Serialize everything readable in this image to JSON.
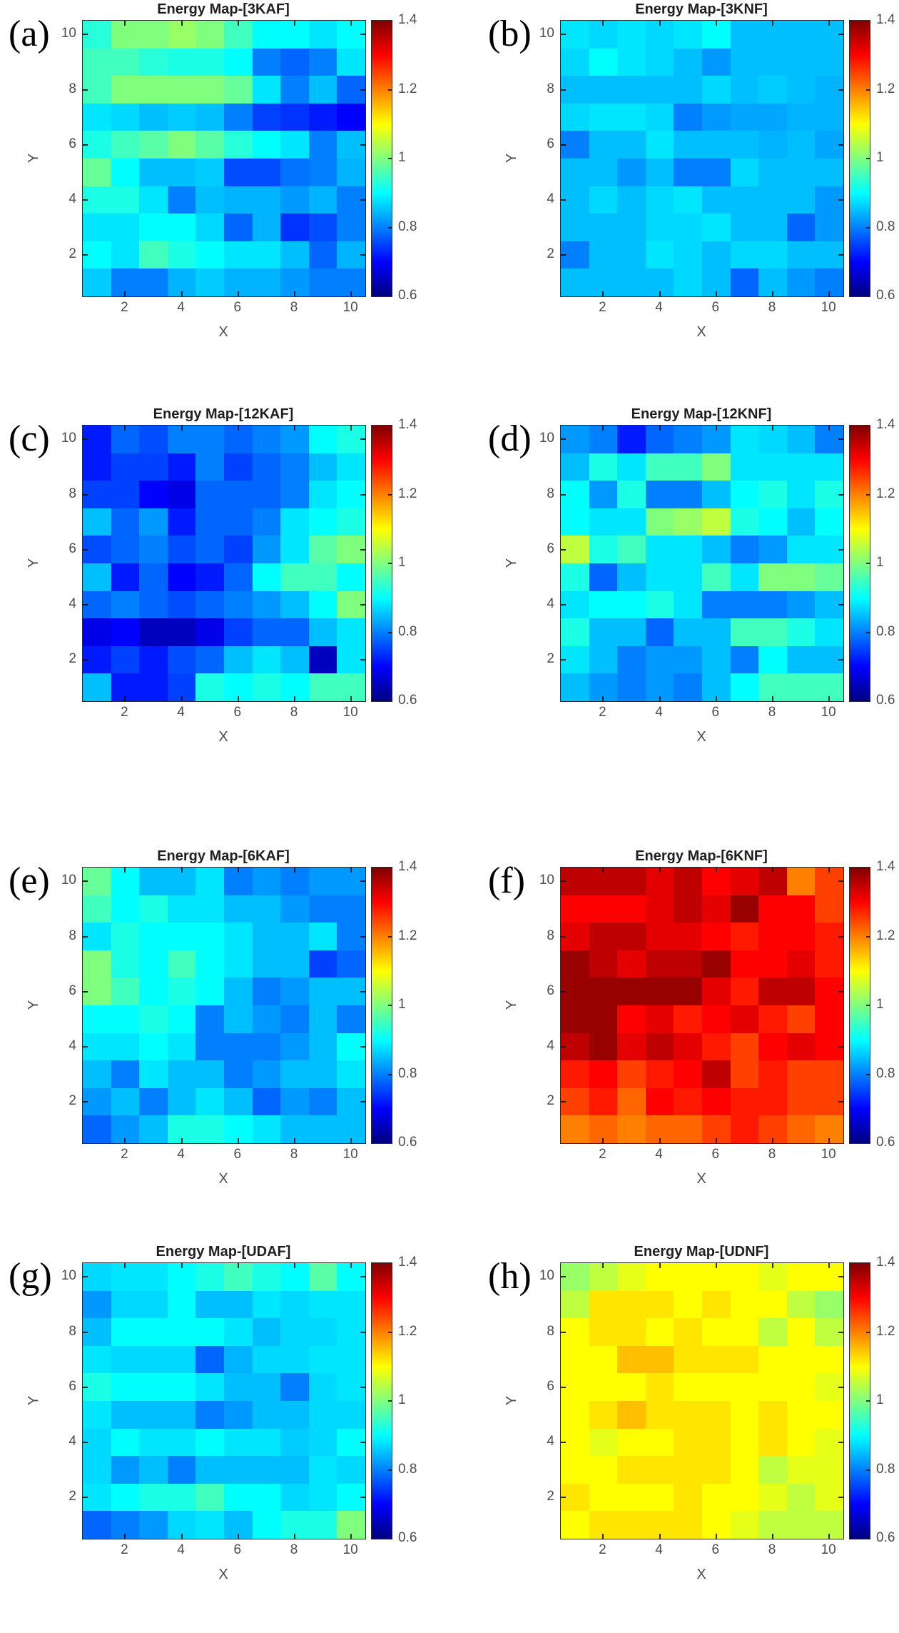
{
  "chart_data": {
    "type": "heatmap",
    "shared": {
      "xlabel": "X",
      "ylabel": "Y",
      "xticks": [
        2,
        4,
        6,
        8,
        10
      ],
      "yticks": [
        2,
        4,
        6,
        8,
        10
      ],
      "x_range": [
        1,
        10
      ],
      "y_range": [
        1,
        10
      ],
      "grid_size": [
        10,
        10
      ],
      "colormap": "jet",
      "clim": [
        0.6,
        1.4
      ],
      "colorbar_tick_labels_top_to_bottom": [
        "1.4",
        "1.2",
        "1",
        "0.8",
        "0.6"
      ],
      "legend_position": "right-colorbar",
      "grid": "off"
    },
    "panels": [
      {
        "panel_label": "(a)",
        "title": "Energy Map-[3KAF]",
        "values_rows_y10_to_y1": [
          [
            0.93,
            1.0,
            1.0,
            1.02,
            1.0,
            0.95,
            0.9,
            0.9,
            0.88,
            0.9
          ],
          [
            0.95,
            0.95,
            0.93,
            0.92,
            0.92,
            0.9,
            0.8,
            0.78,
            0.8,
            0.88
          ],
          [
            0.95,
            1.0,
            1.0,
            1.0,
            1.0,
            0.98,
            0.88,
            0.8,
            0.85,
            0.78
          ],
          [
            0.88,
            0.87,
            0.85,
            0.86,
            0.85,
            0.8,
            0.75,
            0.74,
            0.72,
            0.7
          ],
          [
            0.92,
            0.95,
            0.97,
            1.0,
            0.97,
            0.93,
            0.9,
            0.88,
            0.8,
            0.85
          ],
          [
            0.98,
            0.9,
            0.85,
            0.85,
            0.86,
            0.76,
            0.76,
            0.79,
            0.8,
            0.84
          ],
          [
            0.92,
            0.92,
            0.88,
            0.8,
            0.85,
            0.84,
            0.84,
            0.82,
            0.84,
            0.8
          ],
          [
            0.88,
            0.88,
            0.9,
            0.9,
            0.87,
            0.78,
            0.84,
            0.74,
            0.76,
            0.8
          ],
          [
            0.9,
            0.88,
            0.95,
            0.92,
            0.9,
            0.88,
            0.88,
            0.85,
            0.78,
            0.84
          ],
          [
            0.86,
            0.8,
            0.8,
            0.84,
            0.86,
            0.84,
            0.84,
            0.82,
            0.8,
            0.8
          ]
        ]
      },
      {
        "panel_label": "(b)",
        "title": "Energy Map-[3KNF]",
        "values_rows_y10_to_y1": [
          [
            0.88,
            0.87,
            0.88,
            0.87,
            0.88,
            0.9,
            0.85,
            0.85,
            0.85,
            0.85
          ],
          [
            0.87,
            0.9,
            0.88,
            0.87,
            0.85,
            0.82,
            0.85,
            0.85,
            0.85,
            0.85
          ],
          [
            0.85,
            0.85,
            0.85,
            0.85,
            0.85,
            0.87,
            0.85,
            0.86,
            0.85,
            0.84
          ],
          [
            0.87,
            0.88,
            0.88,
            0.87,
            0.8,
            0.82,
            0.83,
            0.83,
            0.84,
            0.84
          ],
          [
            0.8,
            0.85,
            0.85,
            0.88,
            0.85,
            0.85,
            0.85,
            0.84,
            0.85,
            0.83
          ],
          [
            0.85,
            0.85,
            0.82,
            0.85,
            0.8,
            0.8,
            0.87,
            0.85,
            0.85,
            0.85
          ],
          [
            0.85,
            0.87,
            0.85,
            0.87,
            0.88,
            0.85,
            0.85,
            0.85,
            0.85,
            0.82
          ],
          [
            0.85,
            0.85,
            0.85,
            0.87,
            0.87,
            0.88,
            0.85,
            0.85,
            0.78,
            0.82
          ],
          [
            0.8,
            0.85,
            0.85,
            0.88,
            0.87,
            0.85,
            0.87,
            0.87,
            0.85,
            0.85
          ],
          [
            0.85,
            0.85,
            0.85,
            0.85,
            0.87,
            0.85,
            0.78,
            0.85,
            0.82,
            0.8
          ]
        ]
      },
      {
        "panel_label": "(c)",
        "title": "Energy Map-[12KAF]",
        "values_rows_y10_to_y1": [
          [
            0.72,
            0.78,
            0.76,
            0.8,
            0.8,
            0.78,
            0.8,
            0.82,
            0.9,
            0.92
          ],
          [
            0.72,
            0.75,
            0.75,
            0.72,
            0.8,
            0.75,
            0.78,
            0.8,
            0.85,
            0.88
          ],
          [
            0.75,
            0.75,
            0.7,
            0.68,
            0.78,
            0.78,
            0.78,
            0.8,
            0.88,
            0.9
          ],
          [
            0.85,
            0.78,
            0.82,
            0.72,
            0.78,
            0.78,
            0.8,
            0.88,
            0.9,
            0.92
          ],
          [
            0.76,
            0.78,
            0.8,
            0.76,
            0.78,
            0.75,
            0.82,
            0.88,
            0.97,
            1.0
          ],
          [
            0.85,
            0.72,
            0.78,
            0.7,
            0.72,
            0.78,
            0.9,
            0.95,
            0.95,
            0.9
          ],
          [
            0.78,
            0.8,
            0.78,
            0.76,
            0.78,
            0.8,
            0.82,
            0.85,
            0.9,
            1.0
          ],
          [
            0.68,
            0.7,
            0.65,
            0.65,
            0.68,
            0.75,
            0.78,
            0.78,
            0.85,
            0.88
          ],
          [
            0.72,
            0.75,
            0.72,
            0.76,
            0.78,
            0.85,
            0.88,
            0.85,
            0.65,
            0.88
          ],
          [
            0.85,
            0.72,
            0.72,
            0.75,
            0.92,
            0.9,
            0.92,
            0.9,
            0.95,
            0.95
          ]
        ]
      },
      {
        "panel_label": "(d)",
        "title": "Energy Map-[12KNF]",
        "values_rows_y10_to_y1": [
          [
            0.82,
            0.8,
            0.72,
            0.78,
            0.8,
            0.82,
            0.88,
            0.87,
            0.85,
            0.8
          ],
          [
            0.85,
            0.92,
            0.88,
            0.95,
            0.95,
            1.0,
            0.88,
            0.88,
            0.88,
            0.88
          ],
          [
            0.9,
            0.82,
            0.92,
            0.8,
            0.8,
            0.85,
            0.9,
            0.92,
            0.88,
            0.92
          ],
          [
            0.9,
            0.88,
            0.88,
            1.0,
            1.02,
            1.05,
            0.92,
            0.9,
            0.85,
            0.9
          ],
          [
            1.05,
            0.92,
            0.95,
            0.88,
            0.88,
            0.85,
            0.8,
            0.82,
            0.88,
            0.88
          ],
          [
            0.92,
            0.78,
            0.85,
            0.88,
            0.88,
            0.95,
            0.88,
            1.0,
            1.0,
            0.98
          ],
          [
            0.88,
            0.9,
            0.9,
            0.92,
            0.88,
            0.8,
            0.8,
            0.8,
            0.82,
            0.85
          ],
          [
            0.92,
            0.85,
            0.85,
            0.78,
            0.85,
            0.85,
            0.95,
            0.95,
            0.92,
            0.88
          ],
          [
            0.88,
            0.85,
            0.8,
            0.82,
            0.82,
            0.85,
            0.8,
            0.9,
            0.85,
            0.85
          ],
          [
            0.85,
            0.82,
            0.8,
            0.82,
            0.8,
            0.85,
            0.9,
            0.95,
            0.95,
            0.95
          ]
        ]
      },
      {
        "panel_label": "(e)",
        "title": "Energy Map-[6KAF]",
        "values_rows_y10_to_y1": [
          [
            0.98,
            0.9,
            0.85,
            0.85,
            0.88,
            0.8,
            0.82,
            0.8,
            0.82,
            0.82
          ],
          [
            0.95,
            0.9,
            0.92,
            0.88,
            0.88,
            0.85,
            0.85,
            0.82,
            0.8,
            0.8
          ],
          [
            0.88,
            0.92,
            0.9,
            0.9,
            0.9,
            0.88,
            0.85,
            0.85,
            0.88,
            0.8
          ],
          [
            1.0,
            0.92,
            0.9,
            0.95,
            0.9,
            0.88,
            0.85,
            0.85,
            0.75,
            0.78
          ],
          [
            1.0,
            0.95,
            0.9,
            0.92,
            0.9,
            0.85,
            0.8,
            0.82,
            0.85,
            0.85
          ],
          [
            0.9,
            0.9,
            0.92,
            0.9,
            0.8,
            0.85,
            0.82,
            0.8,
            0.85,
            0.8
          ],
          [
            0.88,
            0.88,
            0.9,
            0.88,
            0.8,
            0.8,
            0.8,
            0.82,
            0.85,
            0.9
          ],
          [
            0.85,
            0.8,
            0.88,
            0.85,
            0.85,
            0.8,
            0.82,
            0.85,
            0.85,
            0.88
          ],
          [
            0.82,
            0.85,
            0.8,
            0.85,
            0.88,
            0.85,
            0.78,
            0.82,
            0.8,
            0.85
          ],
          [
            0.78,
            0.82,
            0.85,
            0.92,
            0.92,
            0.9,
            0.88,
            0.85,
            0.85,
            0.85
          ]
        ]
      },
      {
        "panel_label": "(f)",
        "title": "Energy Map-[6KNF]",
        "values_rows_y10_to_y1": [
          [
            1.35,
            1.35,
            1.35,
            1.32,
            1.35,
            1.3,
            1.32,
            1.35,
            1.2,
            1.25
          ],
          [
            1.3,
            1.3,
            1.3,
            1.32,
            1.35,
            1.32,
            1.38,
            1.3,
            1.3,
            1.25
          ],
          [
            1.32,
            1.35,
            1.35,
            1.32,
            1.32,
            1.3,
            1.28,
            1.3,
            1.3,
            1.28
          ],
          [
            1.38,
            1.35,
            1.32,
            1.35,
            1.35,
            1.38,
            1.3,
            1.3,
            1.32,
            1.28
          ],
          [
            1.38,
            1.38,
            1.38,
            1.38,
            1.38,
            1.32,
            1.28,
            1.35,
            1.35,
            1.3
          ],
          [
            1.38,
            1.38,
            1.3,
            1.32,
            1.28,
            1.3,
            1.32,
            1.28,
            1.25,
            1.3
          ],
          [
            1.35,
            1.38,
            1.32,
            1.35,
            1.32,
            1.28,
            1.25,
            1.3,
            1.32,
            1.3
          ],
          [
            1.28,
            1.3,
            1.25,
            1.28,
            1.3,
            1.35,
            1.25,
            1.28,
            1.25,
            1.25
          ],
          [
            1.25,
            1.28,
            1.22,
            1.3,
            1.28,
            1.3,
            1.28,
            1.28,
            1.25,
            1.25
          ],
          [
            1.2,
            1.22,
            1.2,
            1.22,
            1.22,
            1.25,
            1.28,
            1.25,
            1.22,
            1.2
          ]
        ]
      },
      {
        "panel_label": "(g)",
        "title": "Energy Map-[UDAF]",
        "values_rows_y10_to_y1": [
          [
            0.87,
            0.88,
            0.88,
            0.9,
            0.92,
            0.95,
            0.92,
            0.9,
            0.97,
            0.9
          ],
          [
            0.82,
            0.87,
            0.87,
            0.9,
            0.85,
            0.85,
            0.88,
            0.87,
            0.88,
            0.88
          ],
          [
            0.85,
            0.9,
            0.9,
            0.9,
            0.9,
            0.88,
            0.85,
            0.87,
            0.87,
            0.88
          ],
          [
            0.88,
            0.87,
            0.87,
            0.87,
            0.78,
            0.84,
            0.87,
            0.87,
            0.88,
            0.88
          ],
          [
            0.92,
            0.9,
            0.9,
            0.9,
            0.88,
            0.85,
            0.85,
            0.8,
            0.87,
            0.88
          ],
          [
            0.88,
            0.85,
            0.85,
            0.85,
            0.8,
            0.82,
            0.85,
            0.85,
            0.87,
            0.87
          ],
          [
            0.87,
            0.9,
            0.88,
            0.88,
            0.9,
            0.88,
            0.88,
            0.86,
            0.87,
            0.9
          ],
          [
            0.87,
            0.82,
            0.85,
            0.8,
            0.85,
            0.85,
            0.85,
            0.85,
            0.88,
            0.87
          ],
          [
            0.88,
            0.9,
            0.92,
            0.92,
            0.95,
            0.9,
            0.9,
            0.87,
            0.88,
            0.9
          ],
          [
            0.78,
            0.8,
            0.82,
            0.87,
            0.88,
            0.85,
            0.9,
            0.92,
            0.92,
            1.0
          ]
        ]
      },
      {
        "panel_label": "(h)",
        "title": "Energy Map-[UDNF]",
        "values_rows_y10_to_y1": [
          [
            1.02,
            1.05,
            1.08,
            1.1,
            1.1,
            1.1,
            1.1,
            1.08,
            1.1,
            1.1
          ],
          [
            1.05,
            1.12,
            1.12,
            1.12,
            1.1,
            1.12,
            1.1,
            1.1,
            1.05,
            1.02
          ],
          [
            1.1,
            1.12,
            1.12,
            1.1,
            1.12,
            1.1,
            1.1,
            1.05,
            1.1,
            1.05
          ],
          [
            1.1,
            1.1,
            1.15,
            1.15,
            1.12,
            1.12,
            1.12,
            1.1,
            1.1,
            1.1
          ],
          [
            1.1,
            1.1,
            1.1,
            1.12,
            1.1,
            1.1,
            1.1,
            1.1,
            1.1,
            1.08
          ],
          [
            1.1,
            1.12,
            1.15,
            1.12,
            1.12,
            1.12,
            1.1,
            1.12,
            1.1,
            1.1
          ],
          [
            1.1,
            1.08,
            1.1,
            1.1,
            1.12,
            1.12,
            1.1,
            1.12,
            1.1,
            1.08
          ],
          [
            1.1,
            1.1,
            1.12,
            1.12,
            1.12,
            1.12,
            1.1,
            1.05,
            1.08,
            1.08
          ],
          [
            1.12,
            1.1,
            1.1,
            1.1,
            1.12,
            1.1,
            1.1,
            1.08,
            1.05,
            1.08
          ],
          [
            1.1,
            1.12,
            1.12,
            1.12,
            1.12,
            1.1,
            1.08,
            1.05,
            1.05,
            1.05
          ]
        ]
      }
    ]
  }
}
